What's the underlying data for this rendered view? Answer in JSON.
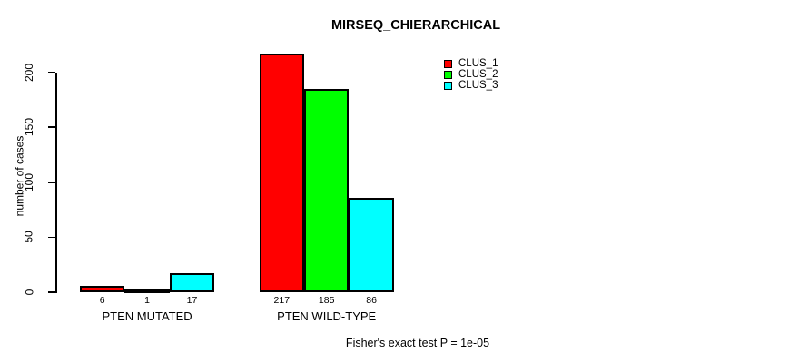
{
  "title": "MIRSEQ_CHIERARCHICAL",
  "ylabel": "number of cases",
  "footer": "Fisher's exact test P = 1e-05",
  "legend": {
    "items": [
      {
        "label": "CLUS_1",
        "color": "#FF0000"
      },
      {
        "label": "CLUS_2",
        "color": "#00FF00"
      },
      {
        "label": "CLUS_3",
        "color": "#00FFFF"
      }
    ]
  },
  "chart_data": {
    "type": "bar",
    "title": "MIRSEQ_CHIERARCHICAL",
    "ylabel": "number of cases",
    "xlabel": "",
    "categories": [
      "PTEN MUTATED",
      "PTEN WILD-TYPE"
    ],
    "series": [
      {
        "name": "CLUS_1",
        "color": "#FF0000",
        "values": [
          6,
          217
        ]
      },
      {
        "name": "CLUS_2",
        "color": "#00FF00",
        "values": [
          1,
          185
        ]
      },
      {
        "name": "CLUS_3",
        "color": "#00FFFF",
        "values": [
          17,
          86
        ]
      }
    ],
    "yticks": [
      0,
      50,
      100,
      150,
      200
    ],
    "ylim": [
      0,
      220
    ],
    "bar_value_labels": [
      [
        6,
        1,
        17
      ],
      [
        217,
        185,
        86
      ]
    ],
    "annotation": "Fisher's exact test P = 1e-05",
    "legend_position": "inside-top-right",
    "grid": false,
    "bar_border_color": "#000000",
    "background_color": "#FFFFFF"
  }
}
